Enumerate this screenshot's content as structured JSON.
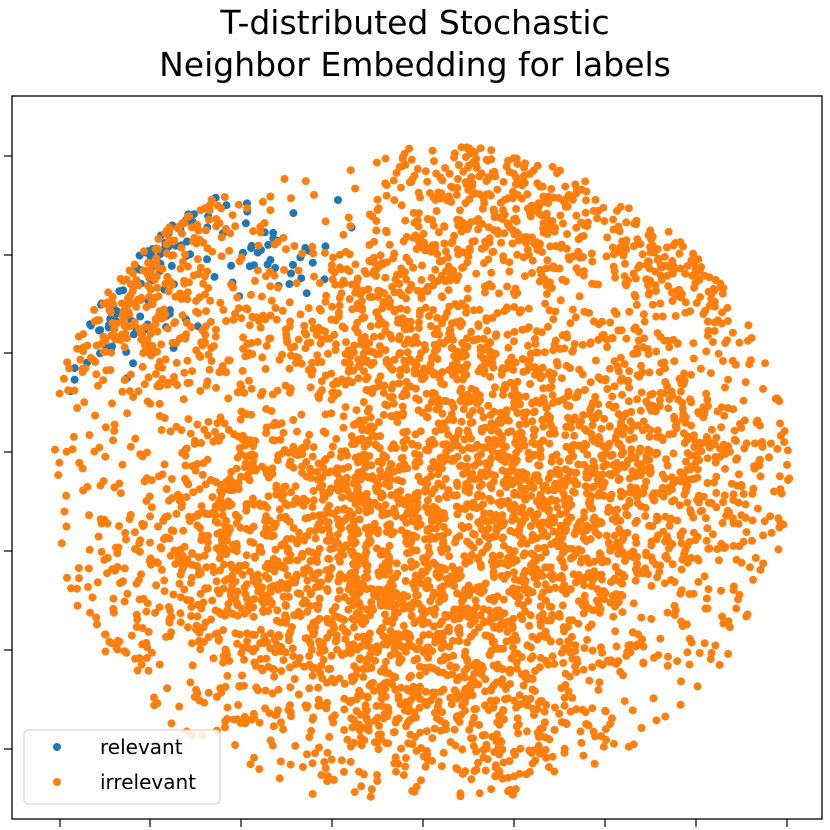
{
  "chart_data": {
    "type": "scatter",
    "title_lines": [
      "T-distributed Stochastic",
      "Neighbor Embedding for labels"
    ],
    "xlabel": "",
    "ylabel": "",
    "x_tick_labels_shown": false,
    "y_tick_labels_shown": false,
    "xlim": [
      -100,
      100
    ],
    "ylim": [
      -100,
      100
    ],
    "grid": false,
    "legend_position": "lower-left",
    "series": [
      {
        "name": "relevant",
        "color": "#1f77b4",
        "clusters": [
          {
            "x": -68,
            "y": 62,
            "spread": 9,
            "count": 140
          },
          {
            "x": -60,
            "y": 74,
            "spread": 6,
            "count": 80
          },
          {
            "x": -78,
            "y": 38,
            "spread": 10,
            "count": 90
          },
          {
            "x": -35,
            "y": 58,
            "spread": 8,
            "count": 40
          }
        ]
      },
      {
        "name": "irrelevant",
        "color": "#ff7f0e",
        "clusters": [
          {
            "x": 5,
            "y": -18,
            "spread": 38,
            "count": 2600
          },
          {
            "x": -40,
            "y": -35,
            "spread": 26,
            "count": 600
          },
          {
            "x": 55,
            "y": -5,
            "spread": 24,
            "count": 700
          },
          {
            "x": 20,
            "y": 72,
            "spread": 18,
            "count": 500
          },
          {
            "x": 75,
            "y": 55,
            "spread": 14,
            "count": 420
          },
          {
            "x": -70,
            "y": 45,
            "spread": 18,
            "count": 500
          },
          {
            "x": -62,
            "y": 72,
            "spread": 8,
            "count": 160
          },
          {
            "x": -2,
            "y": 38,
            "spread": 16,
            "count": 300
          },
          {
            "x": 10,
            "y": -70,
            "spread": 22,
            "count": 500
          }
        ]
      }
    ]
  },
  "legend": {
    "items": [
      {
        "label": "relevant",
        "color": "#1f77b4"
      },
      {
        "label": "irrelevant",
        "color": "#ff7f0e"
      }
    ]
  }
}
